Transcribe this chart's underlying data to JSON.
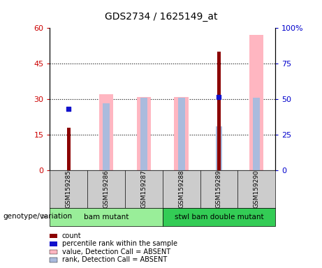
{
  "title": "GDS2734 / 1625149_at",
  "samples": [
    "GSM159285",
    "GSM159286",
    "GSM159287",
    "GSM159288",
    "GSM159289",
    "GSM159290"
  ],
  "count_values": [
    18.0,
    null,
    null,
    null,
    50.0,
    null
  ],
  "percentile_rank_values": [
    26.0,
    null,
    null,
    null,
    31.0,
    null
  ],
  "absent_value_bars": [
    null,
    32.0,
    31.0,
    31.0,
    null,
    57.0
  ],
  "absent_rank_bars": [
    null,
    47.0,
    51.0,
    51.0,
    31.0,
    51.0
  ],
  "ylim_left": [
    0,
    60
  ],
  "ylim_right": [
    0,
    100
  ],
  "yticks_left": [
    0,
    15,
    30,
    45,
    60
  ],
  "yticks_right": [
    0,
    25,
    50,
    75,
    100
  ],
  "ytick_labels_left": [
    "0",
    "15",
    "30",
    "45",
    "60"
  ],
  "ytick_labels_right": [
    "0",
    "25",
    "50",
    "75",
    "100%"
  ],
  "color_count": "#8B0000",
  "color_percentile": "#1111CC",
  "color_absent_value": "#FFB6C1",
  "color_absent_rank": "#AABBDD",
  "group1_label": "bam mutant",
  "group2_label": "stwl bam double mutant",
  "group1_color": "#99EE99",
  "group2_color": "#33CC55",
  "xlabel_label": "genotype/variation",
  "legend_items": [
    "count",
    "percentile rank within the sample",
    "value, Detection Call = ABSENT",
    "rank, Detection Call = ABSENT"
  ],
  "legend_colors": [
    "#8B0000",
    "#1111CC",
    "#FFB6C1",
    "#AABBDD"
  ],
  "axis_label_color_left": "#CC0000",
  "axis_label_color_right": "#0000CC",
  "sample_box_color": "#CCCCCC",
  "plot_bg": "#FFFFFF"
}
